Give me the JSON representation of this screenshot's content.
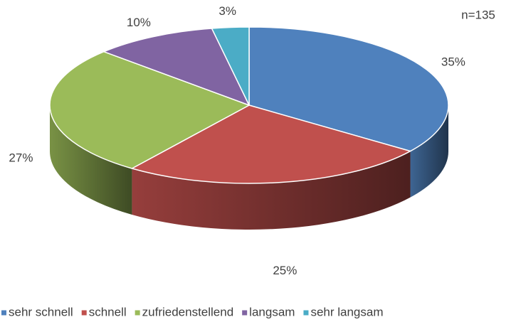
{
  "chart_data": {
    "type": "pie3d",
    "annotation": "n=135",
    "categories": [
      "sehr schnell",
      "schnell",
      "zufriedenstellend",
      "langsam",
      "sehr langsam"
    ],
    "values": [
      35,
      25,
      27,
      10,
      3
    ],
    "value_labels": [
      "35%",
      "25%",
      "27%",
      "10%",
      "3%"
    ],
    "colors": [
      "#4f81bd",
      "#c0504d",
      "#9bbb59",
      "#8064a2",
      "#4bacc6"
    ],
    "legend": "bottom"
  }
}
